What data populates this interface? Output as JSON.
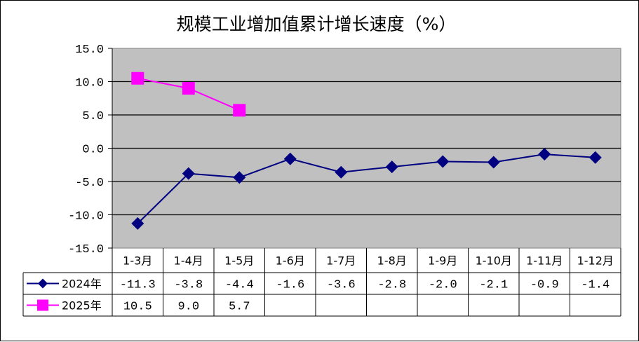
{
  "chart_data": {
    "type": "line",
    "title": "规模工业增加值累计增长速度（%）",
    "categories": [
      "1-3月",
      "1-4月",
      "1-5月",
      "1-6月",
      "1-7月",
      "1-8月",
      "1-9月",
      "1-10月",
      "1-11月",
      "1-12月"
    ],
    "yticks": [
      "15.0",
      "10.0",
      "5.0",
      "0.0",
      "-5.0",
      "-10.0",
      "-15.0"
    ],
    "ylim": [
      -15,
      15
    ],
    "ystep": 5,
    "grid": true,
    "legend": "data-table",
    "series": [
      {
        "name": "2024年",
        "values": [
          -11.3,
          -3.8,
          -4.4,
          -1.6,
          -3.6,
          -2.8,
          -2.0,
          -2.1,
          -0.9,
          -1.4
        ],
        "labels": [
          "-11.3",
          "-3.8",
          "-4.4",
          "-1.6",
          "-3.6",
          "-2.8",
          "-2.0",
          "-2.1",
          "-0.9",
          "-1.4"
        ],
        "color": "#000080",
        "marker": "diamond"
      },
      {
        "name": "2025年",
        "values": [
          10.5,
          9.0,
          5.7,
          null,
          null,
          null,
          null,
          null,
          null,
          null
        ],
        "labels": [
          "10.5",
          "9.0",
          "5.7",
          "",
          "",
          "",
          "",
          "",
          "",
          ""
        ],
        "color": "#ff00ff",
        "marker": "square"
      }
    ],
    "plot_background": "#c0c0c0"
  }
}
